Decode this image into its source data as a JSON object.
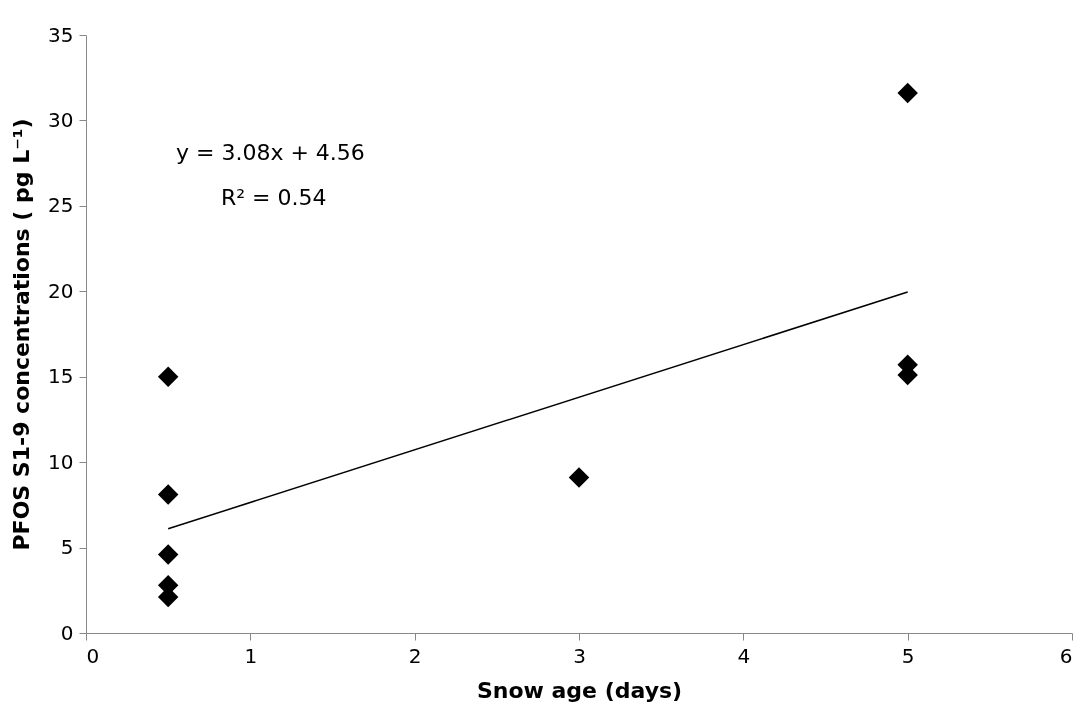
{
  "chart_data": {
    "type": "scatter",
    "xlabel": "Snow age (days)",
    "ylabel": "PFOS S1-9 concentrations  ( pg  L⁻¹)",
    "xlim": [
      0,
      6
    ],
    "xticks": [
      0,
      1,
      2,
      3,
      4,
      5,
      6
    ],
    "ylim": [
      0,
      35
    ],
    "yticks": [
      0,
      5,
      10,
      15,
      20,
      25,
      30,
      35
    ],
    "grid": false,
    "marker": "diamond",
    "series": [
      {
        "color": "#000000",
        "x": [
          0.5,
          0.5,
          0.5,
          0.5,
          0.5,
          3,
          5,
          5,
          5
        ],
        "values": [
          15.0,
          8.1,
          4.6,
          2.8,
          2.1,
          9.1,
          31.6,
          15.7,
          15.1
        ]
      },
      {
        "type": "line",
        "color": "#000000",
        "line_style": "solid",
        "marker": "none",
        "x": [
          0.5,
          5
        ],
        "values": [
          6.1,
          19.96
        ]
      }
    ],
    "annotations": [
      "y = 3.08x + 4.56",
      "R² = 0.54"
    ]
  }
}
